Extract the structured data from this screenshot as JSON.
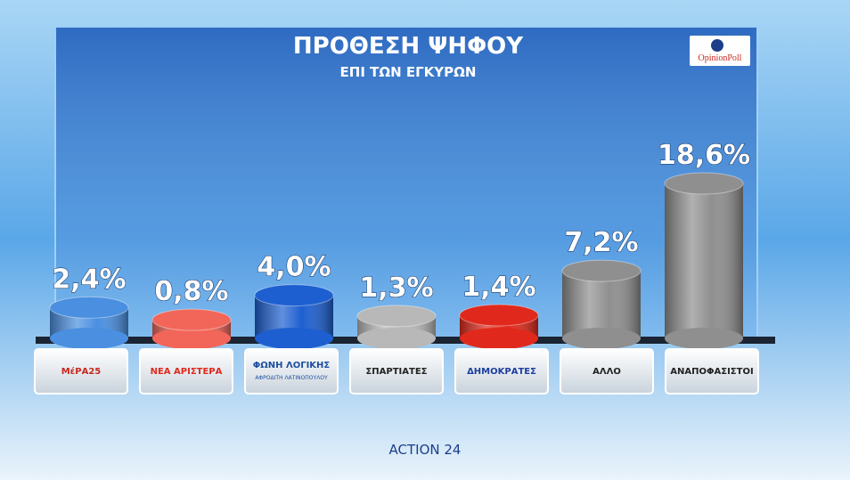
{
  "chart_data": {
    "type": "bar",
    "title": "ΠΡΟΘΕΣΗ ΨΗΦΟΥ",
    "subtitle": "ΕΠΙ ΤΩΝ ΕΓΚΥΡΩΝ",
    "source": "OpinionPoll",
    "channel": "ACTION 24",
    "categories": [
      "ΜέΡΑ25",
      "ΝΕΑ ΑΡΙΣΤΕΡΑ",
      "ΦΩΝΗ ΛΟΓΙΚΗΣ",
      "ΣΠΑΡΤΙΑΤΕΣ",
      "ΔΗΜΟΚΡΑΤΕΣ",
      "ΑΛΛΟ",
      "ΑΝΑΠΟΦΑΣΙΣΤΟΙ"
    ],
    "category_captions": [
      null,
      null,
      "ΑΦΡΟΔΙΤΗ ΛΑΤΙΝΟΠΟΥΛΟΥ",
      null,
      null,
      null,
      null
    ],
    "values": [
      2.4,
      0.8,
      4.0,
      1.3,
      1.4,
      7.2,
      18.6
    ],
    "value_labels": [
      "2,4%",
      "0,8%",
      "4,0%",
      "1,3%",
      "1,4%",
      "7,2%",
      "18,6%"
    ],
    "colors": [
      "#4a8fe0",
      "#f2665a",
      "#1d5fd0",
      "#b8b8b8",
      "#e0291c",
      "#8f8f8f",
      "#8f8f8f"
    ],
    "label_colors": [
      "#c8281e",
      "#e0291c",
      "#1d4fa0",
      "#222222",
      "#1d3fa0",
      "#222222",
      "#222222"
    ]
  }
}
